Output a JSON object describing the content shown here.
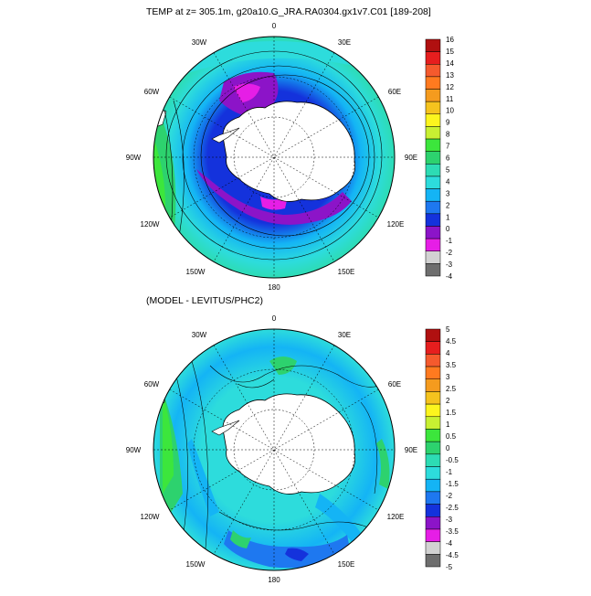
{
  "panel1": {
    "title": "TEMP at z= 305.1m, g20a10.G_JRA.RA0304.gx1v7.C01 [189-208]",
    "colorbar_ticks": [
      "16",
      "15",
      "14",
      "13",
      "12",
      "11",
      "10",
      "9",
      "8",
      "7",
      "6",
      "5",
      "4",
      "3",
      "2",
      "1",
      "0",
      "-1",
      "-2",
      "-3",
      "-4"
    ],
    "colors": [
      "#b01010",
      "#e61e1e",
      "#f55a2d",
      "#ff7a1f",
      "#f59b1e",
      "#f5c31e",
      "#fcf51e",
      "#c8f032",
      "#3ce63c",
      "#2dd26e",
      "#2ddcb4",
      "#2ddcdc",
      "#14b4f5",
      "#1e78f0",
      "#1432dc",
      "#8c14c8",
      "#e61ee6",
      "#d2d2d2",
      "#6e6e6e"
    ]
  },
  "panel2": {
    "title": "(MODEL - LEVITUS/PHC2)",
    "colorbar_ticks": [
      "5",
      "4.5",
      "4",
      "3.5",
      "3",
      "2.5",
      "2",
      "1.5",
      "1",
      "0.5",
      "0",
      "-0.5",
      "-1",
      "-1.5",
      "-2",
      "-2.5",
      "-3",
      "-3.5",
      "-4",
      "-4.5",
      "-5"
    ],
    "colors": [
      "#b01010",
      "#e61e1e",
      "#f55a2d",
      "#ff7a1f",
      "#f59b1e",
      "#f5c31e",
      "#fcf51e",
      "#c8f032",
      "#3ce63c",
      "#2dd26e",
      "#2ddcb4",
      "#2ddcdc",
      "#14b4f5",
      "#1e78f0",
      "#1432dc",
      "#8c14c8",
      "#e61ee6",
      "#d2d2d2",
      "#6e6e6e"
    ]
  },
  "longitude_labels": {
    "lon0": "0",
    "lon30e": "30E",
    "lon60e": "60E",
    "lon90e": "90E",
    "lon120e": "120E",
    "lon150e": "150E",
    "lon180": "180",
    "lon150w": "150W",
    "lon120w": "120W",
    "lon90w": "90W",
    "lon60w": "60W",
    "lon30w": "30W"
  }
}
